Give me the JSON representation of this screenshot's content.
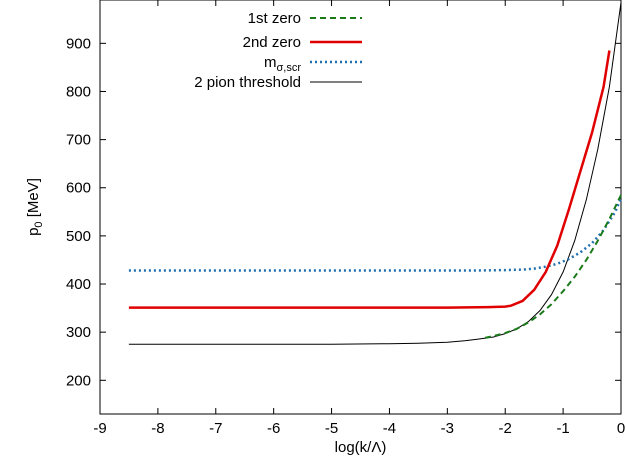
{
  "chart_data": {
    "type": "line",
    "title": "",
    "xlabel": "log(k/Λ)",
    "ylabel_main": "p",
    "ylabel_sub": "0",
    "ylabel_unit": " [MeV]",
    "xlim": [
      -9,
      0
    ],
    "ylim": [
      130,
      990
    ],
    "x_ticks": [
      -9,
      -8,
      -7,
      -6,
      -5,
      -4,
      -3,
      -2,
      -1,
      0
    ],
    "x_tick_labels": [
      "-9",
      "-8",
      "-7",
      "-6",
      "-5",
      "-4",
      "-3",
      "-2",
      "-1",
      "0"
    ],
    "y_ticks": [
      200,
      300,
      400,
      500,
      600,
      700,
      800,
      900
    ],
    "y_tick_labels": [
      "200",
      "300",
      "400",
      "500",
      "600",
      "700",
      "800",
      "900"
    ],
    "grid": false,
    "legend_position": "top-right",
    "series": [
      {
        "name": "1st zero",
        "name_sub": "",
        "color": "#1a7a1a",
        "style": "dashed",
        "x": [
          -2.35,
          -2.2,
          -2.0,
          -1.8,
          -1.6,
          -1.4,
          -1.2,
          -1.0,
          -0.8,
          -0.6,
          -0.4,
          -0.2,
          0.0
        ],
        "y": [
          288,
          292,
          298,
          307,
          320,
          337,
          358,
          385,
          415,
          450,
          490,
          535,
          585
        ]
      },
      {
        "name": "2nd zero",
        "name_sub": "",
        "color": "#e00000",
        "style": "solid",
        "x": [
          -8.5,
          -7.0,
          -5.0,
          -4.0,
          -3.0,
          -2.3,
          -2.0,
          -1.9,
          -1.7,
          -1.5,
          -1.3,
          -1.1,
          -0.9,
          -0.7,
          -0.5,
          -0.3,
          -0.2
        ],
        "y": [
          351,
          351,
          351,
          351,
          351,
          352,
          353,
          355,
          365,
          388,
          425,
          480,
          555,
          635,
          715,
          810,
          885
        ]
      },
      {
        "name": "m",
        "name_sub": "σ,scr",
        "color": "#1f6faf",
        "style": "dotted",
        "x": [
          -8.5,
          -7.0,
          -6.0,
          -5.0,
          -4.0,
          -3.0,
          -2.5,
          -2.0,
          -1.7,
          -1.5,
          -1.3,
          -1.1,
          -0.9,
          -0.7,
          -0.5,
          -0.3,
          -0.1,
          0.0
        ],
        "y": [
          428,
          428,
          428,
          428,
          428,
          428,
          428,
          429,
          430,
          432,
          436,
          442,
          452,
          466,
          485,
          512,
          550,
          578
        ]
      },
      {
        "name": "2 pion threshold",
        "name_sub": "",
        "color": "#000000",
        "style": "solid",
        "x": [
          -8.5,
          -7.0,
          -6.0,
          -5.0,
          -4.0,
          -3.5,
          -3.0,
          -2.7,
          -2.5,
          -2.2,
          -2.0,
          -1.8,
          -1.6,
          -1.4,
          -1.2,
          -1.0,
          -0.8,
          -0.6,
          -0.4,
          -0.2,
          0.0
        ],
        "y": [
          275,
          275,
          275,
          275,
          276,
          277,
          279,
          282,
          285,
          290,
          297,
          307,
          322,
          345,
          378,
          425,
          490,
          575,
          680,
          810,
          985
        ]
      }
    ]
  }
}
